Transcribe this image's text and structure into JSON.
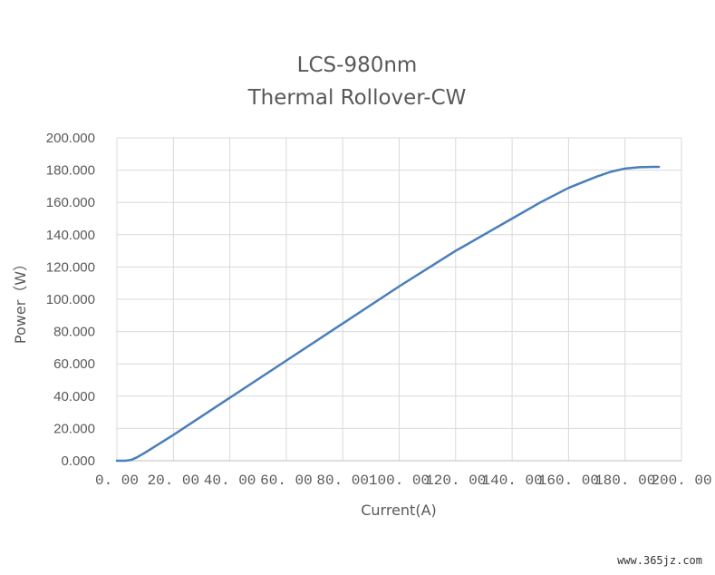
{
  "chart_data": {
    "type": "line",
    "title_line1": "LCS-980nm",
    "title_line2": "Thermal Rollover-CW",
    "xlabel": "Current(A)",
    "ylabel": "Power（W）",
    "xlim": [
      0,
      200
    ],
    "ylim": [
      0,
      200
    ],
    "x_ticks": [
      "0. 00",
      "20. 00",
      "40. 00",
      "60. 00",
      "80. 00",
      "100. 00",
      "120. 00",
      "140. 00",
      "160. 00",
      "180. 00",
      "200. 00"
    ],
    "y_ticks": [
      "0.000",
      "20.000",
      "40.000",
      "60.000",
      "80.000",
      "100.000",
      "120.000",
      "140.000",
      "160.000",
      "180.000",
      "200.000"
    ],
    "grid": true,
    "series": [
      {
        "color": "#4A7EBB",
        "x": [
          0,
          3,
          5,
          7,
          10,
          20,
          40,
          60,
          80,
          100,
          120,
          140,
          150,
          160,
          170,
          175,
          180,
          185,
          190,
          192
        ],
        "y": [
          0,
          0,
          0.5,
          2,
          5,
          16,
          39,
          62,
          85,
          108,
          130,
          150,
          160,
          169,
          176,
          179,
          181,
          181.8,
          182,
          182
        ]
      }
    ]
  },
  "watermark": "www.365jz.com"
}
